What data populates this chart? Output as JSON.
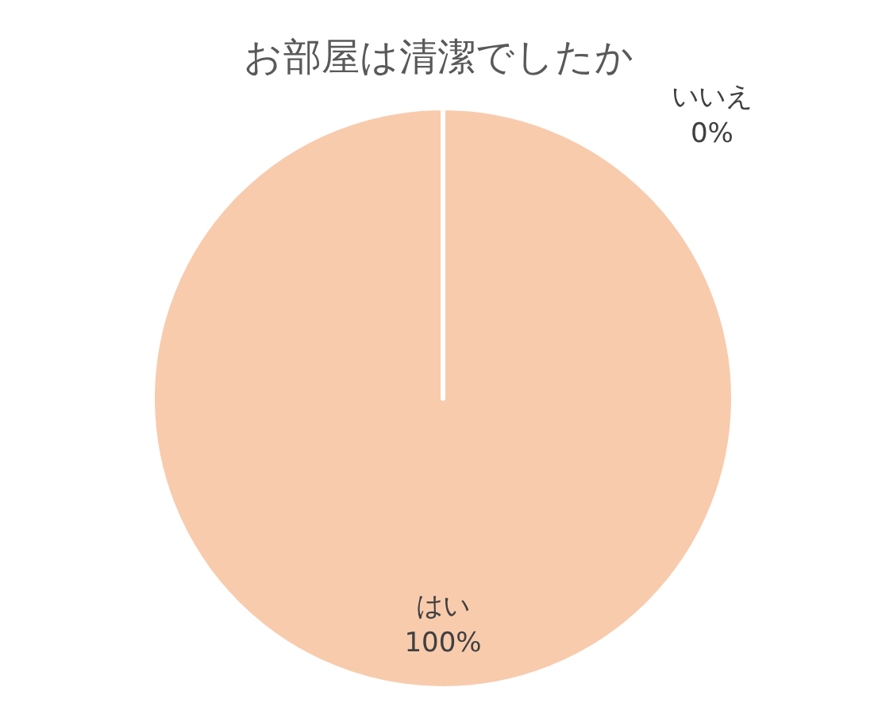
{
  "chart_data": {
    "type": "pie",
    "title": "お部屋は清潔でしたか",
    "categories": [
      "はい",
      "いいえ"
    ],
    "values": [
      100,
      0
    ],
    "colors": [
      "#f8cbad",
      "#f4b183"
    ],
    "value_labels": [
      "100%",
      "0%"
    ]
  }
}
